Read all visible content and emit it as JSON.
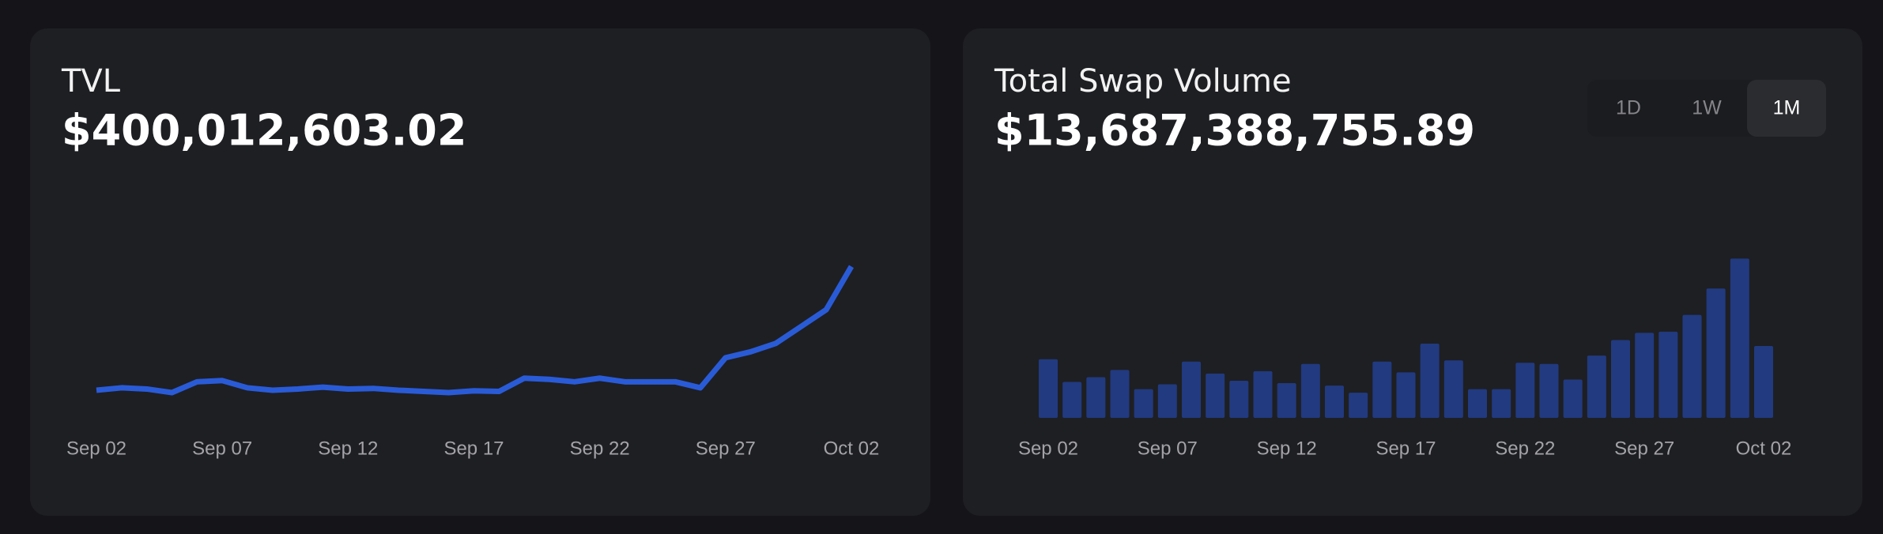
{
  "chart_data": [
    {
      "type": "line",
      "title": "TVL",
      "subtitle": "$400,012,603.02",
      "color": "#2a5bd7",
      "categories": [
        "Sep 02",
        null,
        null,
        null,
        null,
        "Sep 07",
        null,
        null,
        null,
        null,
        "Sep 12",
        null,
        null,
        null,
        null,
        "Sep 17",
        null,
        null,
        null,
        null,
        "Sep 22",
        null,
        null,
        null,
        null,
        "Sep 27",
        null,
        null,
        null,
        null,
        "Oct 02"
      ],
      "values": [
        25,
        27,
        26,
        23,
        32,
        33,
        27,
        25,
        26,
        27.5,
        26,
        26.5,
        25,
        24,
        23,
        24.5,
        24,
        35,
        34,
        32,
        35,
        32,
        32,
        32,
        27,
        52,
        57,
        64,
        78,
        92,
        128
      ],
      "ylim": [
        0,
        190
      ]
    },
    {
      "type": "bar",
      "title": "Total Swap Volume",
      "subtitle": "$13,687,388,755.89",
      "color": "#213a80",
      "categories": [
        "Sep 02",
        null,
        null,
        null,
        null,
        "Sep 07",
        null,
        null,
        null,
        null,
        "Sep 12",
        null,
        null,
        null,
        null,
        "Sep 17",
        null,
        null,
        null,
        null,
        "Sep 22",
        null,
        null,
        null,
        null,
        "Sep 27",
        null,
        null,
        null,
        null,
        "Oct 02"
      ],
      "values": [
        49,
        30,
        34,
        40,
        24,
        28,
        47,
        37,
        31,
        39,
        29,
        45,
        27,
        21,
        47,
        38,
        62,
        48,
        24,
        24,
        46,
        45,
        32,
        52,
        65,
        71,
        72,
        86,
        108,
        133,
        60
      ],
      "ylim": [
        0,
        190
      ]
    }
  ],
  "range_options": [
    "1D",
    "1W",
    "1M"
  ],
  "active_range": "1M"
}
